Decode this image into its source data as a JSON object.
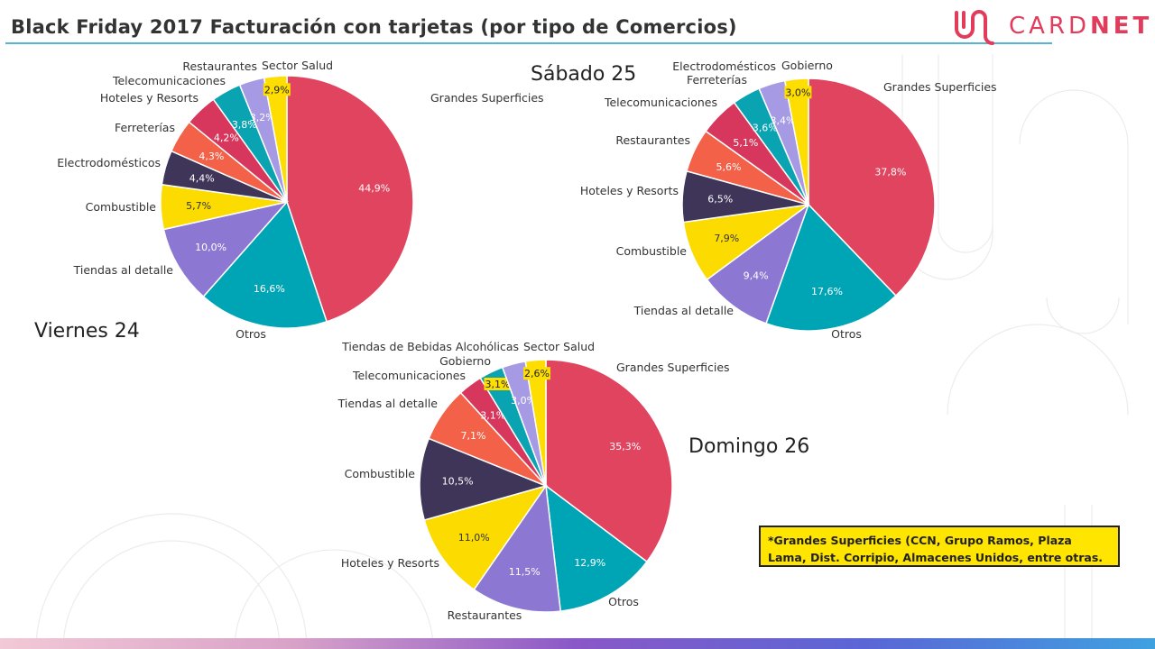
{
  "title": "Black Friday 2017  Facturación con tarjetas (por tipo de Comercios)",
  "logo": {
    "text_light": "CARD",
    "text_bold": "NET"
  },
  "note": "*Grandes Superficies (CCN, Grupo Ramos, Plaza Lama, Dist. Corripio, Almacenes Unidos, entre otras.",
  "colors": {
    "Grandes Superficies": "#e0445e",
    "Otros": "#00a5b5",
    "Tiendas al detalle": "#8c78d2",
    "Combustible": "#fcdb00",
    "Electrodomésticos": "#3e3558",
    "Ferreterías": "#f26148",
    "Hoteles y Resorts": "#d8375d",
    "Telecomunicaciones": "#0aa3b2",
    "Restaurantes": "#a59ae3",
    "Sector Salud": "#fdde00"
  },
  "chart_data": [
    {
      "type": "pie",
      "title": "Viernes 24",
      "slices": [
        {
          "label": "Grandes Superficies",
          "value": 44.9,
          "text": "44,9%",
          "color": "#e0445e"
        },
        {
          "label": "Otros",
          "value": 16.6,
          "text": "16,6%",
          "color": "#00a5b5"
        },
        {
          "label": "Tiendas al detalle",
          "value": 10.0,
          "text": "10,0%",
          "color": "#8c78d2"
        },
        {
          "label": "Combustible",
          "value": 5.7,
          "text": "5,7%",
          "color": "#fcdb00"
        },
        {
          "label": "Electrodomésticos",
          "value": 4.4,
          "text": "4,4%",
          "color": "#3e3558"
        },
        {
          "label": "Ferreterías",
          "value": 4.3,
          "text": "4,3%",
          "color": "#f26148"
        },
        {
          "label": "Hoteles y Resorts",
          "value": 4.2,
          "text": "4,2%",
          "color": "#d8375d"
        },
        {
          "label": "Telecomunicaciones",
          "value": 3.8,
          "text": "3,8%",
          "color": "#0aa3b2"
        },
        {
          "label": "Restaurantes",
          "value": 3.2,
          "text": "3,2%",
          "color": "#a59ae3"
        },
        {
          "label": "Sector Salud",
          "value": 2.9,
          "text": "2,9%",
          "color": "#fdde00"
        }
      ]
    },
    {
      "type": "pie",
      "title": "Sábado 25",
      "slices": [
        {
          "label": "Grandes Superficies",
          "value": 37.8,
          "text": "37,8%",
          "color": "#e0445e"
        },
        {
          "label": "Otros",
          "value": 17.6,
          "text": "17,6%",
          "color": "#00a5b5"
        },
        {
          "label": "Tiendas al detalle",
          "value": 9.4,
          "text": "9,4%",
          "color": "#8c78d2"
        },
        {
          "label": "Combustible",
          "value": 7.9,
          "text": "7,9%",
          "color": "#fcdb00"
        },
        {
          "label": "Hoteles y Resorts",
          "value": 6.5,
          "text": "6,5%",
          "color": "#3e3558"
        },
        {
          "label": "Restaurantes",
          "value": 5.6,
          "text": "5,6%",
          "color": "#f26148"
        },
        {
          "label": "Telecomunicaciones",
          "value": 5.1,
          "text": "5,1%",
          "color": "#d8375d"
        },
        {
          "label": "Ferreterías",
          "value": 3.6,
          "text": "3,6%",
          "color": "#0aa3b2"
        },
        {
          "label": "Electrodomésticos",
          "value": 3.4,
          "text": "3,4%",
          "color": "#a59ae3"
        },
        {
          "label": "Gobierno",
          "value": 3.0,
          "text": "3,0%",
          "color": "#fdde00"
        }
      ]
    },
    {
      "type": "pie",
      "title": "Domingo 26",
      "slices": [
        {
          "label": "Grandes Superficies",
          "value": 35.3,
          "text": "35,3%",
          "color": "#e0445e"
        },
        {
          "label": "Otros",
          "value": 12.9,
          "text": "12,9%",
          "color": "#00a5b5"
        },
        {
          "label": "Restaurantes",
          "value": 11.5,
          "text": "11,5%",
          "color": "#8c78d2"
        },
        {
          "label": "Hoteles y Resorts",
          "value": 11.0,
          "text": "11,0%",
          "color": "#fcdb00"
        },
        {
          "label": "Combustible",
          "value": 10.5,
          "text": "10,5%",
          "color": "#3e3558"
        },
        {
          "label": "Tiendas al detalle",
          "value": 7.1,
          "text": "7,1%",
          "color": "#f26148"
        },
        {
          "label": "Telecomunicaciones",
          "value": 3.1,
          "text": "3,1%",
          "color": "#d8375d"
        },
        {
          "label": "Gobierno",
          "value": 3.1,
          "text": "3,1%",
          "color": "#0aa3b2"
        },
        {
          "label": "Tiendas de Bebidas Alcohólicas",
          "value": 3.0,
          "text": "3,0%",
          "color": "#a59ae3"
        },
        {
          "label": "Sector Salud",
          "value": 2.6,
          "text": "2,6%",
          "color": "#fdde00"
        }
      ]
    }
  ]
}
